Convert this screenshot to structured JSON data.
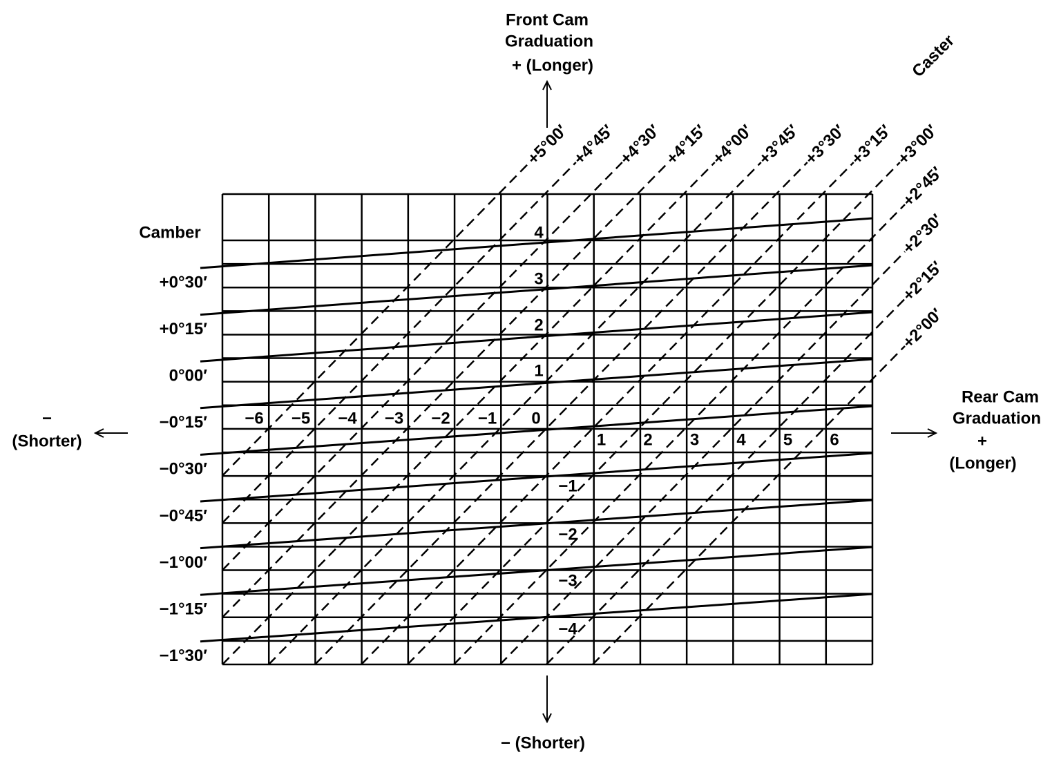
{
  "front_cam": {
    "lines": [
      "Front Cam",
      "Graduation",
      "+ (Longer)"
    ],
    "minus": "− (Shorter)"
  },
  "rear_cam": {
    "lines": [
      "Rear Cam",
      "Graduation",
      "+",
      "(Longer)"
    ],
    "minus": [
      "−",
      "(Shorter)"
    ]
  },
  "caster": {
    "title": "Caster",
    "labels": [
      "+5°00′",
      "+4°45′",
      "+4°30′",
      "+4°15′",
      "+4°00′",
      "+3°45′",
      "+3°30′",
      "+3°15′",
      "+3°00′",
      "+2°45′",
      "+2°30′",
      "+2°15′",
      "+2°00′"
    ]
  },
  "camber": {
    "title": "Camber",
    "labels": [
      "+0°30′",
      "+0°15′",
      "0°00′",
      "−0°15′",
      "−0°30′",
      "−0°45′",
      "−1°00′",
      "−1°15′",
      "−1°30′"
    ]
  },
  "rear_graduations": [
    "−6",
    "−5",
    "−4",
    "−3",
    "−2",
    "−1",
    "0",
    "1",
    "2",
    "3",
    "4",
    "5",
    "6"
  ],
  "front_graduations": [
    "4",
    "3",
    "2",
    "1",
    "−1",
    "−2",
    "−3",
    "−4"
  ]
}
